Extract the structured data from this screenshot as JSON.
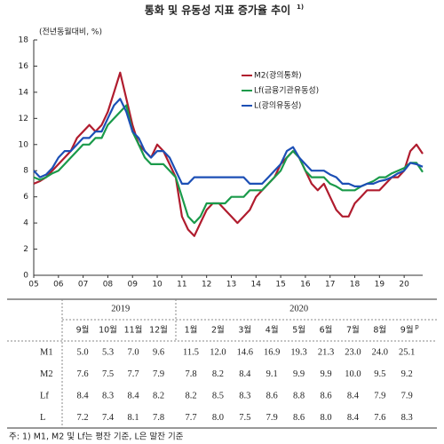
{
  "chart_data": {
    "type": "line",
    "title": "통화 및 유동성 지표 증가율 추이",
    "title_note": "1)",
    "y_label": "(전년동월대비, %)",
    "x": [
      2005,
      2005.25,
      2005.5,
      2005.75,
      2006,
      2006.25,
      2006.5,
      2006.75,
      2007,
      2007.25,
      2007.5,
      2007.75,
      2008,
      2008.25,
      2008.5,
      2008.75,
      2009,
      2009.25,
      2009.5,
      2009.75,
      2010,
      2010.25,
      2010.5,
      2010.75,
      2011,
      2011.25,
      2011.5,
      2011.75,
      2012,
      2012.25,
      2012.5,
      2012.75,
      2013,
      2013.25,
      2013.5,
      2013.75,
      2014,
      2014.25,
      2014.5,
      2014.75,
      2015,
      2015.25,
      2015.5,
      2015.75,
      2016,
      2016.25,
      2016.5,
      2016.75,
      2017,
      2017.25,
      2017.5,
      2017.75,
      2018,
      2018.25,
      2018.5,
      2018.75,
      2019,
      2019.25,
      2019.5,
      2019.75,
      2020,
      2020.25,
      2020.5,
      2020.75
    ],
    "series": [
      {
        "name": "M2(광의통화)",
        "color": "#b01c2e",
        "values": [
          7.0,
          7.2,
          7.5,
          8.0,
          8.5,
          9.0,
          9.5,
          10.5,
          11.0,
          11.5,
          11.0,
          11.5,
          12.5,
          14.0,
          15.5,
          13.5,
          11.5,
          10.0,
          9.5,
          9.0,
          10.0,
          9.5,
          8.5,
          7.5,
          4.5,
          3.5,
          3.0,
          4.0,
          5.0,
          5.5,
          5.5,
          5.0,
          4.5,
          4.0,
          4.5,
          5.0,
          6.0,
          6.5,
          7.0,
          7.5,
          8.5,
          9.0,
          9.5,
          9.0,
          8.0,
          7.0,
          6.5,
          7.0,
          6.0,
          5.0,
          4.5,
          4.5,
          5.5,
          6.0,
          6.5,
          6.5,
          6.5,
          7.0,
          7.5,
          7.5,
          8.0,
          9.5,
          10.0,
          9.3
        ]
      },
      {
        "name": "Lf(금융기관유동성)",
        "color": "#1a9a4a",
        "values": [
          7.5,
          7.3,
          7.5,
          7.8,
          8.0,
          8.5,
          9.0,
          9.5,
          10.0,
          10.0,
          10.5,
          10.5,
          11.5,
          12.0,
          12.5,
          13.0,
          11.0,
          10.0,
          9.0,
          8.5,
          8.5,
          8.5,
          8.0,
          7.5,
          6.0,
          4.5,
          4.0,
          4.5,
          5.5,
          5.5,
          5.5,
          5.5,
          6.0,
          6.0,
          6.0,
          6.5,
          6.5,
          6.5,
          7.0,
          7.5,
          8.0,
          9.0,
          9.5,
          9.0,
          8.0,
          7.5,
          7.5,
          7.5,
          7.0,
          6.8,
          6.5,
          6.5,
          6.5,
          6.8,
          7.0,
          7.2,
          7.5,
          7.5,
          7.8,
          8.0,
          8.2,
          8.6,
          8.6,
          7.9
        ]
      },
      {
        "name": "L(광의유동성)",
        "color": "#1c4fb5",
        "values": [
          8.0,
          7.5,
          7.7,
          8.2,
          9.0,
          9.5,
          9.5,
          10.0,
          10.5,
          10.5,
          11.0,
          11.0,
          12.0,
          13.0,
          13.5,
          12.5,
          11.0,
          10.5,
          9.5,
          9.0,
          9.5,
          9.5,
          9.0,
          8.0,
          7.0,
          7.0,
          7.5,
          7.5,
          7.5,
          7.5,
          7.5,
          7.5,
          7.5,
          7.5,
          7.5,
          7.0,
          7.0,
          7.0,
          7.5,
          8.0,
          8.5,
          9.5,
          9.8,
          9.0,
          8.5,
          8.0,
          8.0,
          8.0,
          7.7,
          7.5,
          7.0,
          7.0,
          6.8,
          6.8,
          7.0,
          7.0,
          7.2,
          7.3,
          7.5,
          7.8,
          8.0,
          8.6,
          8.5,
          8.3
        ]
      }
    ],
    "xlim": [
      2005,
      2020.75
    ],
    "xticks": [
      {
        "value": 2005,
        "label": "05"
      },
      {
        "value": 2006,
        "label": "06"
      },
      {
        "value": 2007,
        "label": "07"
      },
      {
        "value": 2008,
        "label": "08"
      },
      {
        "value": 2009,
        "label": "09"
      },
      {
        "value": 2010,
        "label": "10"
      },
      {
        "value": 2011,
        "label": "11"
      },
      {
        "value": 2012,
        "label": "12"
      },
      {
        "value": 2013,
        "label": "13"
      },
      {
        "value": 2014,
        "label": "14"
      },
      {
        "value": 2015,
        "label": "15"
      },
      {
        "value": 2016,
        "label": "16"
      },
      {
        "value": 2017,
        "label": "17"
      },
      {
        "value": 2018,
        "label": "18"
      },
      {
        "value": 2019,
        "label": "19"
      },
      {
        "value": 2020,
        "label": "20"
      }
    ],
    "ylim": [
      0,
      18
    ],
    "yticks": [
      0,
      2,
      4,
      6,
      8,
      10,
      12,
      14,
      16,
      18
    ],
    "grid": false
  },
  "table": {
    "years": [
      "2019",
      "2020"
    ],
    "year_spans": [
      4,
      9
    ],
    "months": [
      "9월",
      "10월",
      "11월",
      "12월",
      "1월",
      "2월",
      "3월",
      "4월",
      "5월",
      "6월",
      "7월",
      "8월",
      "9월"
    ],
    "last_month_note": "p",
    "rows": [
      {
        "label": "M1",
        "values": [
          "5.0",
          "5.3",
          "7.0",
          "9.6",
          "11.5",
          "12.0",
          "14.6",
          "16.9",
          "19.3",
          "21.3",
          "23.0",
          "24.0",
          "25.1"
        ]
      },
      {
        "label": "M2",
        "values": [
          "7.6",
          "7.5",
          "7.7",
          "7.9",
          "7.8",
          "8.2",
          "8.4",
          "9.1",
          "9.9",
          "9.9",
          "10.0",
          "9.5",
          "9.2"
        ]
      },
      {
        "label": "Lf",
        "values": [
          "8.4",
          "8.3",
          "8.4",
          "8.2",
          "8.2",
          "8.5",
          "8.3",
          "8.6",
          "8.8",
          "8.6",
          "8.4",
          "7.9",
          "7.9"
        ]
      },
      {
        "label": "L",
        "values": [
          "7.2",
          "7.4",
          "8.1",
          "7.8",
          "7.7",
          "8.0",
          "7.5",
          "7.9",
          "8.6",
          "8.0",
          "8.4",
          "7.6",
          "8.3"
        ]
      }
    ]
  },
  "footnote": "주: 1) M1, M2 및 Lf는 평잔 기준, L은 말잔 기준"
}
